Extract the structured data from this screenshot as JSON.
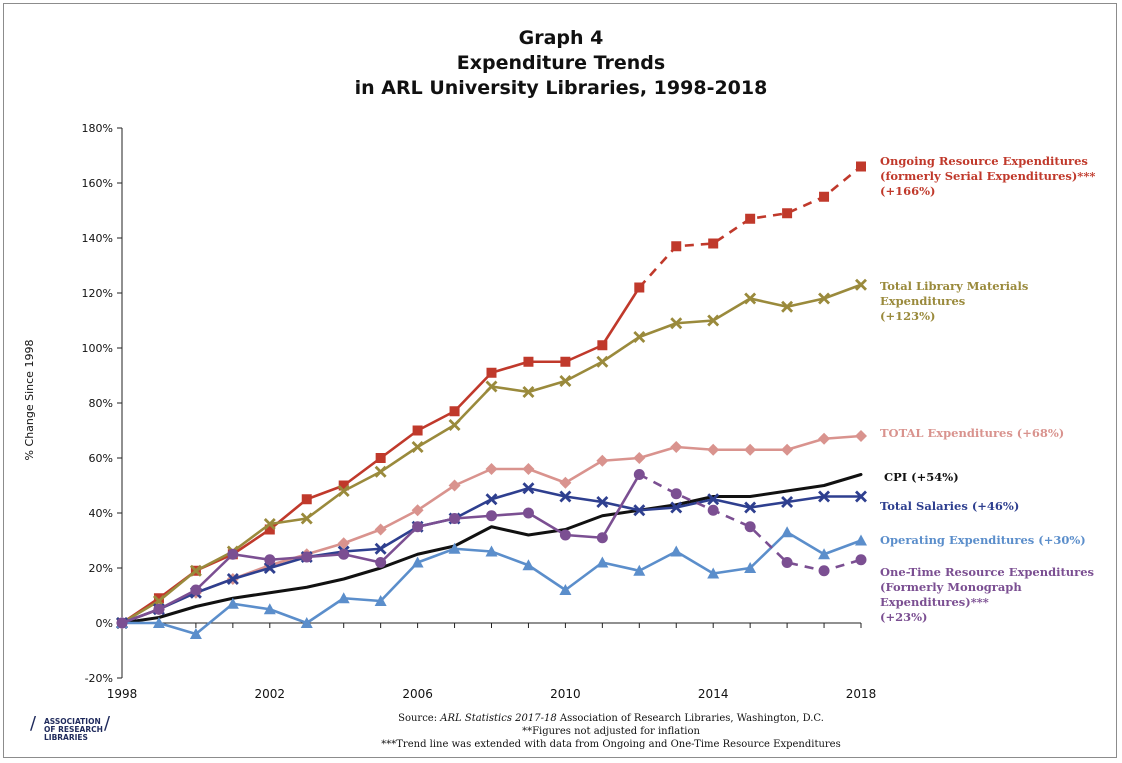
{
  "title_lines": [
    "Graph 4",
    "Expenditure Trends",
    "in ARL University Libraries, 1998-2018"
  ],
  "footer": {
    "source_prefix": "Source: ",
    "source_italic": "ARL Statistics 2017-18",
    "source_suffix": " Association of Research Libraries, Washington, D.C.",
    "note1": "**Figures not adjusted for inflation",
    "note2": "***Trend line was extended with data from Ongoing and One-Time Resource Expenditures"
  },
  "logo": {
    "line1": "ASSOCIATION",
    "line2": "OF RESEARCH",
    "line3": "LIBRARIES"
  },
  "chart_data": {
    "type": "line",
    "ylabel": "% Change Since 1998",
    "xlabel": "",
    "x": [
      1998,
      1999,
      2000,
      2001,
      2002,
      2003,
      2004,
      2005,
      2006,
      2007,
      2008,
      2009,
      2010,
      2011,
      2012,
      2013,
      2014,
      2015,
      2016,
      2017,
      2018
    ],
    "xticks": [
      1998,
      2002,
      2006,
      2010,
      2014,
      2018
    ],
    "ylim": [
      -20,
      180
    ],
    "yticks": [
      -20,
      0,
      20,
      40,
      60,
      80,
      100,
      120,
      140,
      160,
      180
    ],
    "ytick_suffix": "%",
    "grid": false,
    "series": [
      {
        "name": "Ongoing Resource Expenditures (formerly Serial Expenditures)*** (+166%)",
        "label_lines": [
          "Ongoing Resource Expenditures",
          "(formerly Serial Expenditures)***",
          "(+166%)"
        ],
        "color": "#c0392b",
        "marker": "square",
        "dashed_from_index": 14,
        "values": [
          0,
          9,
          19,
          25,
          34,
          45,
          50,
          60,
          70,
          77,
          91,
          95,
          95,
          101,
          122,
          137,
          138,
          147,
          149,
          155,
          166
        ]
      },
      {
        "name": "Total Library Materials Expenditures (+123%)",
        "label_lines": [
          "Total Library Materials",
          "Expenditures",
          "(+123%)"
        ],
        "color": "#9a8a3c",
        "marker": "x",
        "dashed_from_index": null,
        "values": [
          0,
          8,
          19,
          26,
          36,
          38,
          48,
          55,
          64,
          72,
          86,
          84,
          88,
          95,
          104,
          109,
          110,
          118,
          115,
          118,
          123
        ]
      },
      {
        "name": "TOTAL Expenditures (+68%)",
        "label_lines": [
          "TOTAL Expenditures (+68%)"
        ],
        "color": "#d9938e",
        "marker": "diamond",
        "dashed_from_index": null,
        "values": [
          0,
          5,
          11,
          16,
          21,
          25,
          29,
          34,
          41,
          50,
          56,
          56,
          51,
          59,
          60,
          64,
          63,
          63,
          63,
          67,
          68
        ]
      },
      {
        "name": "CPI (+54%)",
        "label_lines": [
          "CPI (+54%)"
        ],
        "color": "#111111",
        "marker": "none",
        "dashed_from_index": null,
        "values": [
          0,
          2,
          6,
          9,
          11,
          13,
          16,
          20,
          25,
          28,
          35,
          32,
          34,
          39,
          41,
          43,
          46,
          46,
          48,
          50,
          54
        ]
      },
      {
        "name": "Total Salaries (+46%)",
        "label_lines": [
          "Total Salaries (+46%)"
        ],
        "color": "#2e3f8f",
        "marker": "x",
        "dashed_from_index": null,
        "values": [
          0,
          5,
          11,
          16,
          20,
          24,
          26,
          27,
          35,
          38,
          45,
          49,
          46,
          44,
          41,
          42,
          45,
          42,
          44,
          46,
          46
        ]
      },
      {
        "name": "Operating Expenditures (+30%)",
        "label_lines": [
          "Operating Expenditures (+30%)"
        ],
        "color": "#5b8ecb",
        "marker": "triangle",
        "dashed_from_index": null,
        "values": [
          0,
          0,
          -4,
          7,
          5,
          0,
          9,
          8,
          22,
          27,
          26,
          21,
          12,
          22,
          19,
          26,
          18,
          20,
          33,
          25,
          30
        ]
      },
      {
        "name": "One-Time Resource Expenditures (Formerly Monograph Expenditures)*** (+23%)",
        "label_lines": [
          "One-Time Resource Expenditures",
          "(Formerly Monograph",
          "Expenditures)***",
          "(+23%)"
        ],
        "color": "#7b4f92",
        "marker": "circle",
        "dashed_from_index": 14,
        "values": [
          0,
          5,
          12,
          25,
          23,
          24,
          25,
          22,
          35,
          38,
          39,
          40,
          32,
          31,
          54,
          47,
          41,
          35,
          22,
          19,
          23
        ]
      }
    ]
  }
}
